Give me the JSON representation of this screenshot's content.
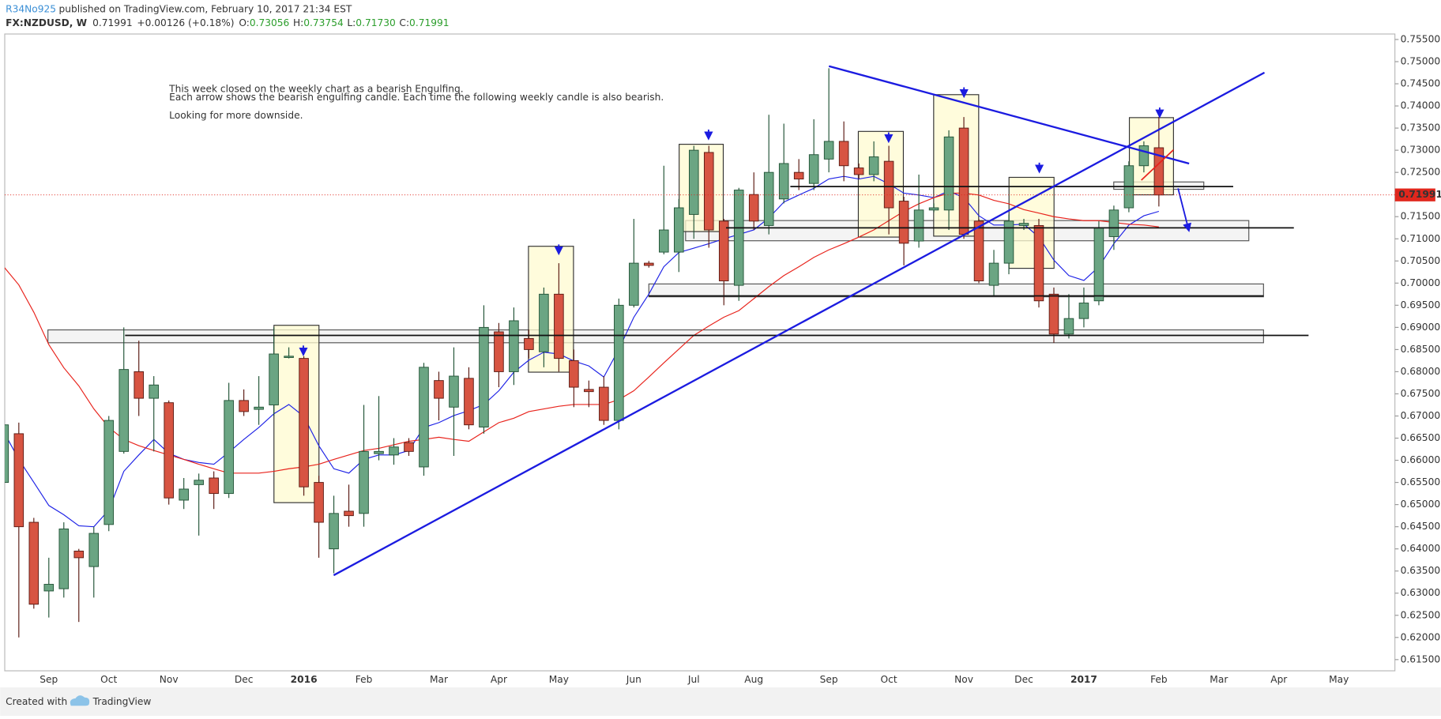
{
  "header": {
    "author": "R34No925",
    "published": "published on TradingView.com, February 10, 2017 21:34 EST",
    "symbol": "FX:NZDUSD, W",
    "price": "0.71991",
    "change": "+0.00126 (+0.18%)",
    "open_label": "O:",
    "open": "0.73056",
    "high_label": "H:",
    "high": "0.73754",
    "low_label": "L:",
    "low": "0.71730",
    "close_label": "C:",
    "close": "0.71991"
  },
  "annotation": {
    "lines": [
      "This week closed on the weekly chart as a bearish Engulfing.",
      "Each arrow shows the bearish engulfing candle. Each time the following weekly candle is also bearish.",
      "Looking for more downside."
    ]
  },
  "footer": {
    "created_with": "Created with",
    "brand": "TradingView"
  },
  "chart_data": {
    "type": "candlestick",
    "up_color": "#6ba583",
    "up_border": "#225437",
    "down_color": "#d75442",
    "down_border": "#5b1a13",
    "grid": false,
    "ylim": [
      0.61247,
      0.75624
    ],
    "yticks": [
      {
        "value": 0.755,
        "label": "0.75500"
      },
      {
        "value": 0.75,
        "label": "0.75000"
      },
      {
        "value": 0.745,
        "label": "0.74500"
      },
      {
        "value": 0.74,
        "label": "0.74000"
      },
      {
        "value": 0.735,
        "label": "0.73500"
      },
      {
        "value": 0.73,
        "label": "0.73000"
      },
      {
        "value": 0.725,
        "label": "0.72500"
      },
      {
        "value": 0.715,
        "label": "0.71500"
      },
      {
        "value": 0.71,
        "label": "0.71000"
      },
      {
        "value": 0.705,
        "label": "0.70500"
      },
      {
        "value": 0.7,
        "label": "0.70000"
      },
      {
        "value": 0.695,
        "label": "0.69500"
      },
      {
        "value": 0.69,
        "label": "0.69000"
      },
      {
        "value": 0.685,
        "label": "0.68500"
      },
      {
        "value": 0.68,
        "label": "0.68000"
      },
      {
        "value": 0.675,
        "label": "0.67500"
      },
      {
        "value": 0.67,
        "label": "0.67000"
      },
      {
        "value": 0.665,
        "label": "0.66500"
      },
      {
        "value": 0.66,
        "label": "0.66000"
      },
      {
        "value": 0.655,
        "label": "0.65500"
      },
      {
        "value": 0.65,
        "label": "0.65000"
      },
      {
        "value": 0.645,
        "label": "0.64500"
      },
      {
        "value": 0.64,
        "label": "0.64000"
      },
      {
        "value": 0.635,
        "label": "0.63500"
      },
      {
        "value": 0.63,
        "label": "0.63000"
      },
      {
        "value": 0.625,
        "label": "0.62500"
      },
      {
        "value": 0.62,
        "label": "0.62000"
      },
      {
        "value": 0.615,
        "label": "0.61500"
      }
    ],
    "last_price": 0.71991,
    "last_price_color": "#e0271d",
    "categories": [
      null,
      null,
      null,
      "Sep",
      null,
      null,
      null,
      "Oct",
      null,
      null,
      null,
      "Nov",
      null,
      null,
      null,
      null,
      "Dec",
      null,
      null,
      null,
      "2016",
      null,
      null,
      null,
      "Feb",
      null,
      null,
      null,
      null,
      "Mar",
      null,
      null,
      null,
      "Apr",
      null,
      null,
      null,
      "May",
      null,
      null,
      null,
      null,
      "Jun",
      null,
      null,
      null,
      "Jul",
      null,
      null,
      null,
      "Aug",
      null,
      null,
      null,
      null,
      "Sep",
      null,
      null,
      null,
      "Oct",
      null,
      null,
      null,
      null,
      "Nov",
      null,
      null,
      null,
      "Dec",
      null,
      null,
      null,
      "2017",
      null,
      null,
      null,
      null,
      "Feb",
      null,
      null,
      null,
      "Mar",
      null,
      null,
      null,
      "Apr",
      null,
      null,
      null,
      "May"
    ],
    "open": [
      0.655,
      0.666,
      0.646,
      0.6305,
      0.631,
      0.6395,
      0.636,
      0.6455,
      0.662,
      0.68,
      0.674,
      0.673,
      0.651,
      0.6545,
      0.656,
      0.6525,
      0.6735,
      0.6715,
      0.6725,
      0.6832,
      0.683,
      0.655,
      0.64,
      0.6485,
      0.648,
      0.6615,
      0.6612,
      0.664,
      0.6585,
      0.678,
      0.672,
      0.6785,
      0.6675,
      0.689,
      0.68,
      0.6875,
      0.6845,
      0.6975,
      0.6825,
      0.676,
      0.6765,
      0.669,
      0.695,
      0.7045,
      0.707,
      0.707,
      0.7155,
      0.7295,
      0.714,
      0.6995,
      0.72,
      0.713,
      0.719,
      0.725,
      0.7225,
      0.728,
      0.732,
      0.726,
      0.7245,
      0.7275,
      0.7185,
      0.7095,
      0.7165,
      0.7165,
      0.735,
      0.714,
      0.6995,
      0.7045,
      0.713,
      0.713,
      0.6975,
      0.6885,
      0.692,
      0.696,
      0.7105,
      0.717,
      0.7265,
      0.73056,
      null,
      null,
      null,
      null,
      null,
      null,
      null,
      null,
      null,
      null,
      null,
      null
    ],
    "high": [
      0.669,
      0.6685,
      0.647,
      0.638,
      0.646,
      0.64,
      0.645,
      0.67,
      0.69,
      0.687,
      0.679,
      0.6735,
      0.656,
      0.657,
      0.6575,
      0.6775,
      0.676,
      0.679,
      0.69,
      0.6855,
      0.6835,
      0.6565,
      0.652,
      0.6545,
      0.6725,
      0.6745,
      0.665,
      0.665,
      0.682,
      0.68,
      0.6855,
      0.681,
      0.695,
      0.691,
      0.6945,
      0.6895,
      0.699,
      0.7045,
      0.685,
      0.678,
      0.679,
      0.6965,
      0.7145,
      0.705,
      0.7265,
      0.719,
      0.731,
      0.731,
      0.7145,
      0.7215,
      0.725,
      0.738,
      0.736,
      0.728,
      0.737,
      0.7485,
      0.7365,
      0.727,
      0.732,
      0.731,
      0.7195,
      0.7245,
      0.718,
      0.7345,
      0.7375,
      0.7145,
      0.7075,
      0.7155,
      0.7145,
      0.7145,
      0.699,
      0.6975,
      0.699,
      0.714,
      0.7175,
      0.7275,
      0.732,
      0.73754,
      null,
      null,
      null,
      null,
      null,
      null,
      null,
      null,
      null,
      null,
      null,
      null
    ],
    "low": [
      0.654,
      0.62,
      0.6265,
      0.6245,
      0.629,
      0.6235,
      0.629,
      0.644,
      0.6615,
      0.67,
      0.662,
      0.65,
      0.649,
      0.643,
      0.649,
      0.6515,
      0.67,
      0.668,
      0.67,
      0.683,
      0.652,
      0.638,
      0.6345,
      0.645,
      0.645,
      0.66,
      0.659,
      0.661,
      0.6565,
      0.669,
      0.661,
      0.667,
      0.666,
      0.6765,
      0.677,
      0.683,
      0.681,
      0.68,
      0.672,
      0.672,
      0.668,
      0.667,
      0.6945,
      0.7035,
      0.7065,
      0.7025,
      0.71,
      0.708,
      0.695,
      0.696,
      0.712,
      0.711,
      0.718,
      0.721,
      0.721,
      0.725,
      0.723,
      0.7235,
      0.723,
      0.711,
      0.704,
      0.708,
      0.716,
      0.712,
      0.71,
      0.7,
      0.697,
      0.702,
      0.712,
      0.6945,
      0.6865,
      0.6875,
      0.69,
      0.695,
      0.7075,
      0.716,
      0.725,
      0.7173,
      null,
      null,
      null,
      null,
      null,
      null,
      null,
      null,
      null,
      null,
      null,
      null
    ],
    "close": [
      0.668,
      0.645,
      0.6275,
      0.632,
      0.6445,
      0.638,
      0.6435,
      0.669,
      0.6805,
      0.674,
      0.677,
      0.6515,
      0.6535,
      0.6555,
      0.6525,
      0.6735,
      0.671,
      0.672,
      0.684,
      0.6835,
      0.654,
      0.646,
      0.648,
      0.6475,
      0.662,
      0.662,
      0.663,
      0.662,
      0.681,
      0.674,
      0.679,
      0.668,
      0.69,
      0.68,
      0.6915,
      0.685,
      0.6975,
      0.683,
      0.6765,
      0.6755,
      0.669,
      0.695,
      0.7045,
      0.704,
      0.712,
      0.717,
      0.73,
      0.712,
      0.7005,
      0.721,
      0.714,
      0.725,
      0.727,
      0.7235,
      0.729,
      0.732,
      0.7265,
      0.7245,
      0.7285,
      0.717,
      0.709,
      0.7165,
      0.717,
      0.733,
      0.711,
      0.7005,
      0.7045,
      0.714,
      0.7135,
      0.696,
      0.6885,
      0.692,
      0.6955,
      0.7125,
      0.7165,
      0.7265,
      0.731,
      0.71991,
      null,
      null,
      null,
      null,
      null,
      null,
      null,
      null,
      null,
      null,
      null,
      null
    ],
    "moving_averages": [
      {
        "color": "#1e22e6",
        "values": [
          0.6664,
          0.6602,
          0.655,
          0.6498,
          0.6477,
          0.6452,
          0.645,
          0.6488,
          0.6575,
          0.6612,
          0.6647,
          0.6616,
          0.6602,
          0.6595,
          0.6591,
          0.6618,
          0.6647,
          0.6674,
          0.6705,
          0.6726,
          0.6699,
          0.6633,
          0.6581,
          0.6571,
          0.6602,
          0.6612,
          0.6612,
          0.6622,
          0.6674,
          0.6685,
          0.6701,
          0.6712,
          0.6726,
          0.6757,
          0.6799,
          0.6826,
          0.6844,
          0.684,
          0.6824,
          0.6813,
          0.6788,
          0.6851,
          0.6923,
          0.6975,
          0.7037,
          0.7069,
          0.7079,
          0.7089,
          0.71,
          0.711,
          0.712,
          0.7147,
          0.7183,
          0.7199,
          0.7214,
          0.7235,
          0.7241,
          0.7235,
          0.7241,
          0.7224,
          0.7203,
          0.7199,
          0.7193,
          0.7208,
          0.7193,
          0.7152,
          0.7131,
          0.7131,
          0.7133,
          0.7104,
          0.7052,
          0.7017,
          0.7006,
          0.7037,
          0.7089,
          0.7131,
          0.7152,
          0.7162,
          null,
          null,
          null,
          null,
          null,
          null,
          null,
          null,
          null,
          null,
          null,
          null
        ]
      },
      {
        "color": "#e8231c",
        "values": [
          0.7037,
          0.6996,
          0.6934,
          0.6861,
          0.6809,
          0.6768,
          0.6716,
          0.6674,
          0.6647,
          0.6633,
          0.6622,
          0.6612,
          0.6602,
          0.6591,
          0.6581,
          0.6571,
          0.6571,
          0.6571,
          0.6575,
          0.6581,
          0.6585,
          0.6591,
          0.6602,
          0.6612,
          0.6622,
          0.6627,
          0.6635,
          0.6643,
          0.6647,
          0.6652,
          0.6647,
          0.6643,
          0.6664,
          0.6685,
          0.6695,
          0.671,
          0.6716,
          0.6722,
          0.6726,
          0.6726,
          0.6726,
          0.6737,
          0.6757,
          0.6788,
          0.682,
          0.6851,
          0.6882,
          0.6903,
          0.6923,
          0.6938,
          0.6965,
          0.6992,
          0.7017,
          0.7037,
          0.7058,
          0.7075,
          0.7089,
          0.7104,
          0.712,
          0.7141,
          0.7162,
          0.7179,
          0.7193,
          0.7203,
          0.7203,
          0.7199,
          0.7187,
          0.7179,
          0.7166,
          0.7158,
          0.715,
          0.7145,
          0.7141,
          0.7141,
          0.7137,
          0.7133,
          0.7131,
          0.7127,
          null,
          null,
          null,
          null,
          null,
          null,
          null,
          null,
          null,
          null,
          null,
          null
        ]
      }
    ]
  }
}
